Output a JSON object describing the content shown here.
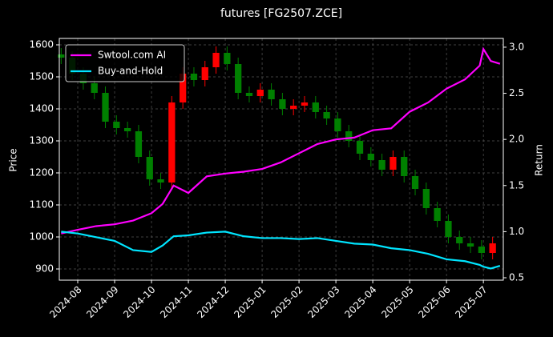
{
  "chart_data": {
    "type": "candlestick_lines",
    "title": "futures [FG2507.ZCE]",
    "ylabel": "Price",
    "y2label": "Return",
    "xlim": [
      -0.5,
      11.54
    ],
    "xticks": [
      {
        "value": 0,
        "label": "2024-08"
      },
      {
        "value": 1,
        "label": "2024-09"
      },
      {
        "value": 2,
        "label": "2024-10"
      },
      {
        "value": 3,
        "label": "2024-11"
      },
      {
        "value": 4,
        "label": "2024-12"
      },
      {
        "value": 5,
        "label": "2025-01"
      },
      {
        "value": 6,
        "label": "2025-02"
      },
      {
        "value": 7,
        "label": "2025-03"
      },
      {
        "value": 8,
        "label": "2025-04"
      },
      {
        "value": 9,
        "label": "2025-05"
      },
      {
        "value": 10,
        "label": "2025-06"
      },
      {
        "value": 11,
        "label": "2025-07"
      }
    ],
    "ylim": [
      865,
      1620
    ],
    "yticks": [
      900,
      1000,
      1100,
      1200,
      1300,
      1400,
      1500,
      1600
    ],
    "y2lim": [
      0.474,
      3.095
    ],
    "y2ticks": [
      0.5,
      {
        "value": 1,
        "label": "1.0"
      },
      1.5,
      {
        "value": 2,
        "label": "2.0"
      },
      2.5,
      {
        "value": 3,
        "label": "3.0"
      }
    ],
    "grid": true,
    "legend": "upper left",
    "up_color": "#ff0000",
    "down_color": "#008000",
    "candles": {
      "x": [
        -0.45,
        -0.15,
        0.15,
        0.45,
        0.75,
        1.05,
        1.35,
        1.65,
        1.95,
        2.25,
        2.55,
        2.85,
        3.15,
        3.45,
        3.75,
        4.05,
        4.35,
        4.65,
        4.95,
        5.25,
        5.55,
        5.85,
        6.15,
        6.45,
        6.75,
        7.05,
        7.35,
        7.65,
        7.95,
        8.25,
        8.55,
        8.85,
        9.15,
        9.45,
        9.75,
        10.05,
        10.35,
        10.65,
        10.95,
        11.25
      ],
      "open": [
        1570,
        1560,
        1510,
        1480,
        1450,
        1360,
        1340,
        1330,
        1250,
        1180,
        1170,
        1420,
        1510,
        1490,
        1530,
        1575,
        1540,
        1450,
        1440,
        1460,
        1430,
        1400,
        1410,
        1420,
        1390,
        1370,
        1330,
        1300,
        1260,
        1240,
        1210,
        1250,
        1190,
        1150,
        1090,
        1050,
        1000,
        980,
        970,
        950
      ],
      "high": [
        1590,
        1580,
        1530,
        1500,
        1470,
        1380,
        1360,
        1350,
        1270,
        1200,
        1440,
        1530,
        1530,
        1550,
        1595,
        1595,
        1560,
        1470,
        1480,
        1480,
        1450,
        1430,
        1440,
        1440,
        1410,
        1390,
        1350,
        1320,
        1280,
        1260,
        1270,
        1270,
        1210,
        1170,
        1110,
        1070,
        1020,
        1000,
        990,
        1000
      ],
      "low": [
        1540,
        1490,
        1460,
        1430,
        1340,
        1320,
        1310,
        1230,
        1160,
        1150,
        1150,
        1400,
        1470,
        1470,
        1510,
        1520,
        1430,
        1420,
        1420,
        1410,
        1380,
        1380,
        1390,
        1370,
        1350,
        1310,
        1280,
        1240,
        1220,
        1190,
        1190,
        1170,
        1130,
        1070,
        1030,
        980,
        960,
        950,
        930,
        930
      ],
      "close": [
        1560,
        1510,
        1480,
        1450,
        1360,
        1340,
        1330,
        1250,
        1180,
        1170,
        1420,
        1510,
        1490,
        1530,
        1575,
        1540,
        1450,
        1440,
        1460,
        1430,
        1400,
        1410,
        1420,
        1390,
        1370,
        1330,
        1300,
        1260,
        1240,
        1210,
        1250,
        1190,
        1150,
        1090,
        1050,
        1000,
        980,
        970,
        950,
        980
      ]
    },
    "x": [
      -0.45,
      0,
      0.5,
      1,
      1.5,
      2,
      2.3,
      2.6,
      3,
      3.5,
      4,
      4.5,
      5,
      5.5,
      6,
      6.5,
      7,
      7.5,
      8,
      8.5,
      9,
      9.5,
      10,
      10.5,
      10.9,
      11.0,
      11.2,
      11.45
    ],
    "series": [
      {
        "name": "Swtool.com AI",
        "color": "#ff00ff",
        "axis": "y2",
        "values": [
          0.98,
          1.02,
          1.06,
          1.08,
          1.12,
          1.2,
          1.3,
          1.5,
          1.42,
          1.6,
          1.63,
          1.65,
          1.68,
          1.75,
          1.85,
          1.95,
          2.0,
          2.02,
          2.1,
          2.12,
          2.3,
          2.4,
          2.55,
          2.65,
          2.8,
          2.98,
          2.85,
          2.82
        ]
      },
      {
        "name": "Buy-and-Hold",
        "color": "#00e5ff",
        "axis": "y2",
        "values": [
          1.0,
          0.98,
          0.94,
          0.9,
          0.8,
          0.78,
          0.85,
          0.95,
          0.96,
          0.99,
          1.0,
          0.95,
          0.93,
          0.93,
          0.92,
          0.93,
          0.9,
          0.87,
          0.86,
          0.82,
          0.8,
          0.76,
          0.7,
          0.68,
          0.64,
          0.62,
          0.6,
          0.63
        ]
      }
    ]
  }
}
